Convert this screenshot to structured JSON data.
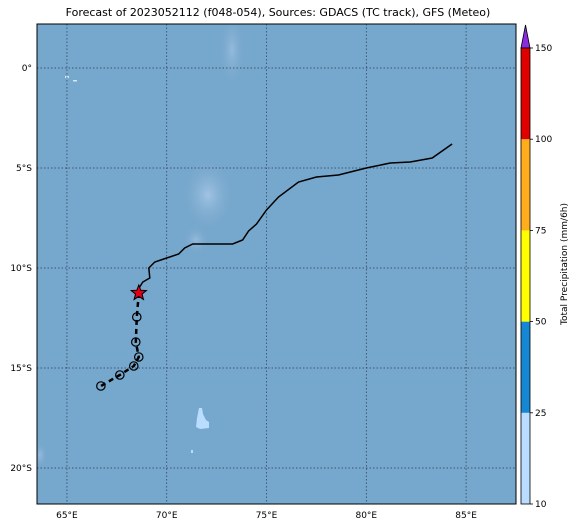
{
  "title": "Forecast of 2023052112 (f048-054), Sources: GDACS (TC track), GFS (Meteo)",
  "map": {
    "lon_range": [
      63.5,
      87.5
    ],
    "lat_range": [
      -21.8,
      2.2
    ],
    "lon_ticks": [
      {
        "value": 65,
        "label": "65°E"
      },
      {
        "value": 70,
        "label": "70°E"
      },
      {
        "value": 75,
        "label": "75°E"
      },
      {
        "value": 80,
        "label": "80°E"
      },
      {
        "value": 85,
        "label": "85°E"
      }
    ],
    "lat_ticks": [
      {
        "value": 0,
        "label": "0°"
      },
      {
        "value": -5,
        "label": "5°S"
      },
      {
        "value": -10,
        "label": "10°S"
      },
      {
        "value": -15,
        "label": "15°S"
      },
      {
        "value": -20,
        "label": "20°S"
      }
    ],
    "gridlines": true,
    "ocean_color": "#76a7cc"
  },
  "track": {
    "past_line": [
      [
        84.3,
        -3.8
      ],
      [
        83.3,
        -4.5
      ],
      [
        82.2,
        -4.7
      ],
      [
        81.2,
        -4.75
      ],
      [
        80.0,
        -5.0
      ],
      [
        78.6,
        -5.35
      ],
      [
        77.5,
        -5.45
      ],
      [
        76.6,
        -5.7
      ],
      [
        75.6,
        -6.45
      ],
      [
        75.0,
        -7.1
      ],
      [
        74.5,
        -7.8
      ],
      [
        74.1,
        -8.15
      ],
      [
        73.8,
        -8.6
      ],
      [
        73.3,
        -8.8
      ],
      [
        72.5,
        -8.8
      ],
      [
        71.9,
        -8.8
      ],
      [
        71.3,
        -8.8
      ],
      [
        70.9,
        -9.0
      ],
      [
        70.6,
        -9.3
      ],
      [
        70.0,
        -9.5
      ],
      [
        69.4,
        -9.7
      ],
      [
        69.1,
        -10.0
      ],
      [
        69.15,
        -10.5
      ],
      [
        68.8,
        -10.7
      ],
      [
        68.55,
        -11.1
      ],
      [
        68.55,
        -11.25
      ]
    ],
    "current_position": [
      68.6,
      -11.25
    ],
    "forecast_points": [
      [
        68.5,
        -12.45
      ],
      [
        68.45,
        -13.7
      ],
      [
        68.6,
        -14.45
      ],
      [
        68.35,
        -14.9
      ],
      [
        67.65,
        -15.35
      ],
      [
        66.7,
        -15.9
      ]
    ]
  },
  "colorbar": {
    "label": "Total Precipitation (mm/6h)",
    "boundaries": [
      10,
      25,
      50,
      75,
      100,
      150
    ],
    "colors": [
      "#b9dcff",
      "#1687d3",
      "#ffff00",
      "#ffad1d",
      "#e10000"
    ],
    "extend_color": "#8a2be2"
  }
}
